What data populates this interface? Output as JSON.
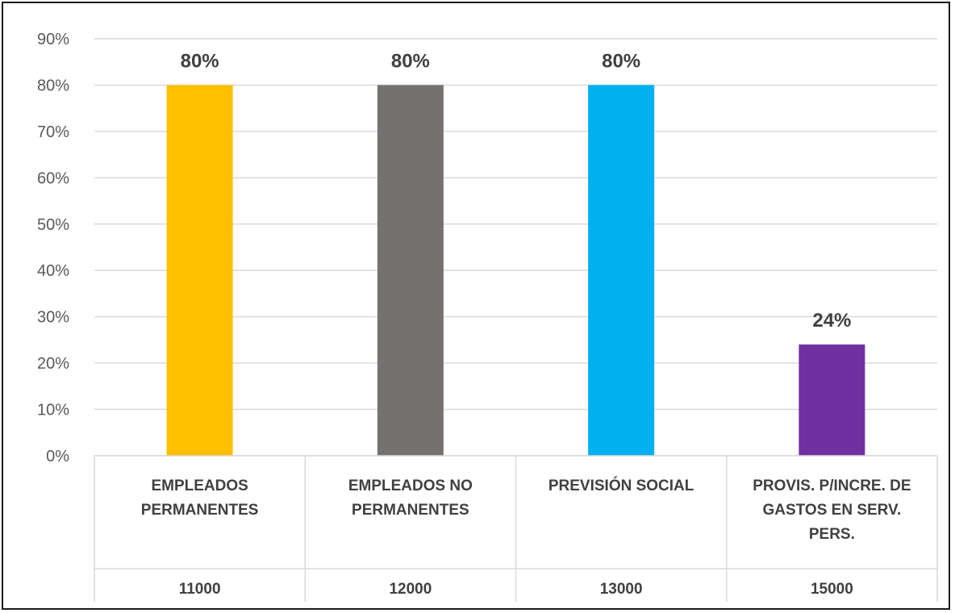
{
  "chart_data": {
    "type": "bar",
    "categories": [
      {
        "code": "11000",
        "name_lines": [
          "EMPLEADOS",
          "PERMANENTES"
        ]
      },
      {
        "code": "12000",
        "name_lines": [
          "EMPLEADOS NO",
          "PERMANENTES"
        ]
      },
      {
        "code": "13000",
        "name_lines": [
          "PREVISIÓN SOCIAL"
        ]
      },
      {
        "code": "15000",
        "name_lines": [
          "PROVIS. P/INCRE. DE",
          "GASTOS EN SERV.",
          "PERS."
        ]
      }
    ],
    "values": [
      80,
      80,
      80,
      24
    ],
    "data_labels": [
      "80%",
      "80%",
      "80%",
      "24%"
    ],
    "colors": [
      "#FFC000",
      "#767171",
      "#00B0F0",
      "#7030A0"
    ],
    "y_ticks": [
      "0%",
      "10%",
      "20%",
      "30%",
      "40%",
      "50%",
      "60%",
      "70%",
      "80%",
      "90%"
    ],
    "ylim": [
      0,
      90
    ],
    "grid": true,
    "title": "",
    "xlabel": "",
    "ylabel": ""
  }
}
